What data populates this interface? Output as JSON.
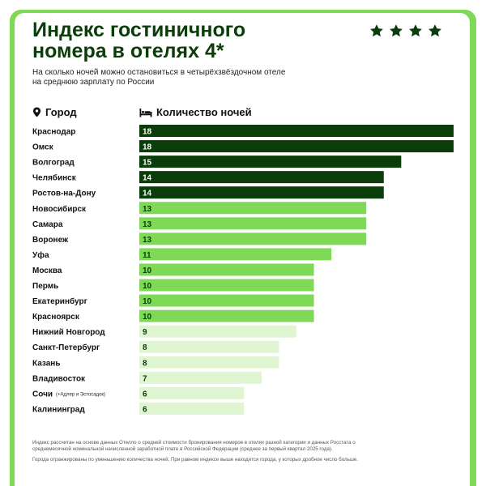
{
  "header": {
    "title": "Индекс гостиничного номера в отелях 4*",
    "subtitle": "На сколько ночей можно остановиться в четырёхзвёздочном отеле на среднюю зарплату по России",
    "stars": [
      "star-icon",
      "star-icon",
      "star-icon",
      "star-icon"
    ]
  },
  "columns": {
    "city": {
      "label": "Город",
      "icon": "location-pin-icon"
    },
    "nights": {
      "label": "Количество ночей",
      "icon": "bed-icon"
    }
  },
  "colors": {
    "dark": "#0b3d0b",
    "mid": "#7ed957",
    "light": "#dff5d1",
    "frame": "#7ed957"
  },
  "chart_data": {
    "type": "bar",
    "orientation": "horizontal",
    "categories": [
      "Краснодар",
      "Омск",
      "Волгоград",
      "Челябинск",
      "Ростов-на-Дону",
      "Новосибирск",
      "Самара",
      "Воронеж",
      "Уфа",
      "Москва",
      "Пермь",
      "Екатеринбург",
      "Красноярск",
      "Нижний Новгород",
      "Санкт-Петербург",
      "Казань",
      "Владивосток",
      "Сочи",
      "Калининград"
    ],
    "category_notes": [
      "",
      "",
      "",
      "",
      "",
      "",
      "",
      "",
      "",
      "",
      "",
      "",
      "",
      "",
      "",
      "",
      "",
      "(+Адлер и Эстосадок)",
      ""
    ],
    "values": [
      18,
      18,
      15,
      14,
      14,
      13,
      13,
      13,
      11,
      10,
      10,
      10,
      10,
      9,
      8,
      8,
      7,
      6,
      6
    ],
    "color_groups": [
      "dark",
      "dark",
      "dark",
      "dark",
      "dark",
      "mid",
      "mid",
      "mid",
      "mid",
      "mid",
      "mid",
      "mid",
      "mid",
      "light",
      "light",
      "light",
      "light",
      "light",
      "light"
    ],
    "xlim": [
      0,
      18
    ]
  },
  "footnotes": [
    "Индекс рассчитан на основе данных Отелло о средней стоимости бронирования номеров в отелях разной категории и данных Росстата о среднемесячной номинальной начисленной заработной плате в Российской Федерации (среднее за первый квартал 2025 года).",
    "Города отранжированы по уменьшению количества ночей. При равном индексе выше находятся города, у которых дробное число больше."
  ]
}
